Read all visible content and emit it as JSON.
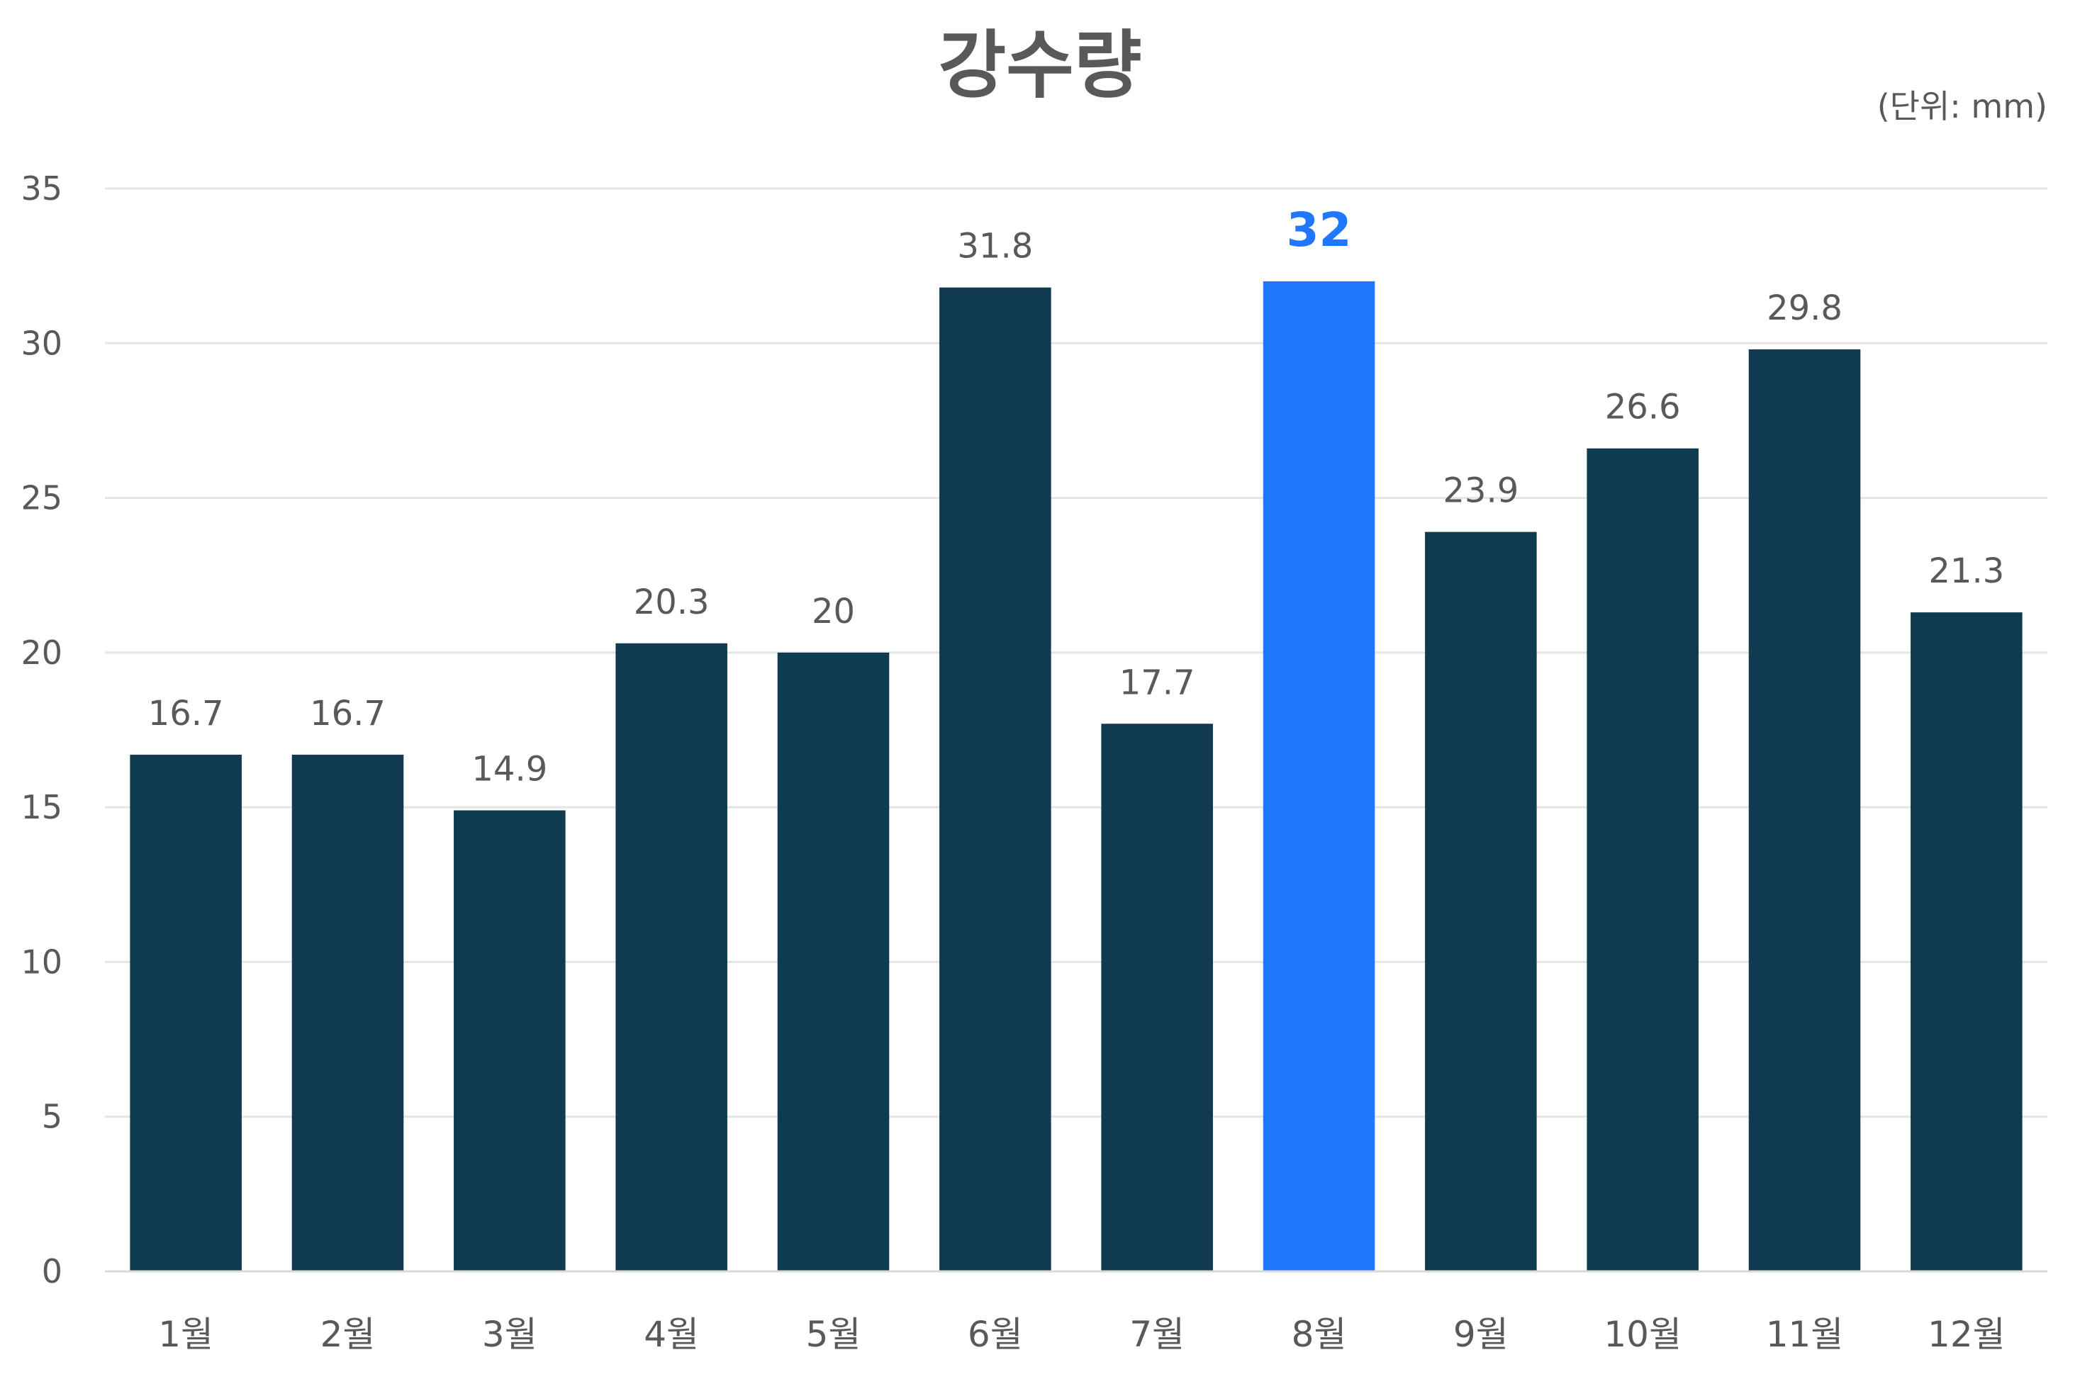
{
  "chart_data": {
    "type": "bar",
    "title": "강수량",
    "unit_label": "(단위: mm)",
    "xlabel": "",
    "ylabel": "",
    "categories": [
      "1월",
      "2월",
      "3월",
      "4월",
      "5월",
      "6월",
      "7월",
      "8월",
      "9월",
      "10월",
      "11월",
      "12월"
    ],
    "values": [
      16.7,
      16.7,
      14.9,
      20.3,
      20,
      31.8,
      17.7,
      32,
      23.9,
      26.6,
      29.8,
      21.3
    ],
    "data_labels": [
      "16.7",
      "16.7",
      "14.9",
      "20.3",
      "20",
      "31.8",
      "17.7",
      "32",
      "23.9",
      "26.6",
      "29.8",
      "21.3"
    ],
    "highlight_index": 7,
    "ylim": [
      0,
      35
    ],
    "yticks": [
      0,
      5,
      10,
      15,
      20,
      25,
      30,
      35
    ],
    "grid": true,
    "legend": "none",
    "colors": {
      "bar": "#0f3a4f",
      "highlight": "#1f78ff",
      "text": "#595959",
      "title": "#595959",
      "grid": "#e4e4e4",
      "axis": "#d9d9d9"
    }
  }
}
